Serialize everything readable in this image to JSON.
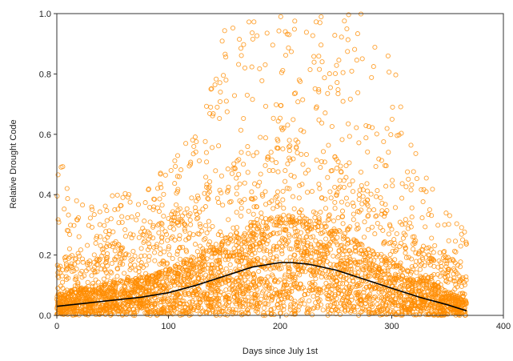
{
  "chart_data": {
    "type": "scatter",
    "title": "",
    "xlabel": "Days since July 1st",
    "ylabel": "Relative Drought Code",
    "xlim": [
      0,
      400
    ],
    "ylim": [
      0,
      1.0
    ],
    "x_ticks": [
      0,
      100,
      200,
      300,
      400
    ],
    "y_ticks": [
      0.0,
      0.2,
      0.4,
      0.6,
      0.8,
      1.0
    ],
    "x_tick_labels": [
      "0",
      "100",
      "200",
      "300",
      "400"
    ],
    "y_tick_labels": [
      "0.0",
      "0.2",
      "0.4",
      "0.6",
      "0.8",
      "1.0"
    ],
    "grid": false,
    "legend": "none",
    "marker": "open-circle",
    "point_color": "#ff8c00",
    "line_color": "#000000",
    "series": [
      {
        "type": "line",
        "x": [
          0,
          25,
          50,
          75,
          100,
          125,
          150,
          175,
          200,
          210,
          225,
          250,
          275,
          300,
          325,
          350,
          367
        ],
        "y": [
          0.03,
          0.04,
          0.05,
          0.06,
          0.075,
          0.1,
          0.13,
          0.16,
          0.175,
          0.175,
          0.17,
          0.15,
          0.12,
          0.09,
          0.06,
          0.035,
          0.015
        ]
      }
    ],
    "scatter_envelope": {
      "x": [
        0,
        25,
        50,
        75,
        100,
        125,
        150,
        175,
        200,
        225,
        250,
        275,
        300,
        325,
        350,
        367
      ],
      "y_max": [
        0.55,
        0.35,
        0.4,
        0.45,
        0.48,
        0.65,
        1.0,
        1.0,
        1.0,
        1.0,
        1.0,
        1.0,
        0.85,
        0.5,
        0.35,
        0.28
      ]
    }
  }
}
